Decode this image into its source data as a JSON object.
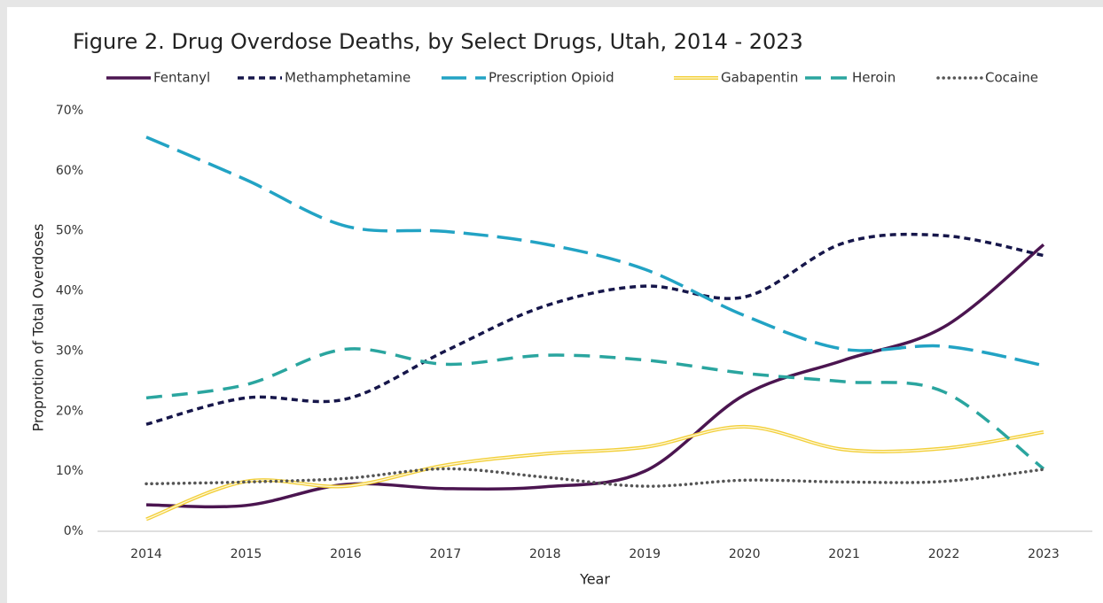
{
  "chart_data": {
    "type": "line",
    "title": "Figure 2. Drug Overdose Deaths, by Select Drugs, Utah, 2014 - 2023",
    "x_label": "Year",
    "y_label": "Proprotion of Total Overdoses",
    "categories": [
      "2014",
      "2015",
      "2016",
      "2017",
      "2018",
      "2019",
      "2020",
      "2021",
      "2022",
      "2023"
    ],
    "ylim": [
      0,
      70
    ],
    "yticks": [
      {
        "value": 0,
        "label": "0%"
      },
      {
        "value": 10,
        "label": "10%"
      },
      {
        "value": 20,
        "label": "20%"
      },
      {
        "value": 30,
        "label": "30%"
      },
      {
        "value": 40,
        "label": "40%"
      },
      {
        "value": 50,
        "label": "50%"
      },
      {
        "value": 60,
        "label": "60%"
      },
      {
        "value": 70,
        "label": "70%"
      }
    ],
    "smooth": true,
    "series": [
      {
        "name": "Fentanyl",
        "color": "#4b1550",
        "style": "solid",
        "values": [
          4.4,
          4.3,
          7.8,
          7.1,
          7.4,
          10,
          22.7,
          28.5,
          34,
          47.7
        ]
      },
      {
        "name": "Methamphetamine",
        "color": "#16164a",
        "style": "dashed",
        "values": [
          17.8,
          22.2,
          22,
          30,
          37.5,
          40.8,
          39,
          48,
          49.2,
          45.9
        ]
      },
      {
        "name": "Prescription Opioid",
        "color": "#22a3c4",
        "style": "longdash",
        "values": [
          65.6,
          58.5,
          50.8,
          49.9,
          47.8,
          43.6,
          35.9,
          30.3,
          30.8,
          27.6
        ]
      },
      {
        "name": "Gabapentin",
        "color": "#f2cf3a",
        "style": "double",
        "values": [
          2.0,
          8.3,
          7.5,
          11,
          12.9,
          14,
          17.4,
          13.6,
          13.8,
          16.5
        ]
      },
      {
        "name": "Heroin",
        "color": "#2aa59f",
        "style": "mediumdash",
        "values": [
          22.2,
          24.4,
          30.3,
          27.8,
          29.3,
          28.5,
          26.3,
          24.9,
          23.2,
          10.4
        ]
      },
      {
        "name": "Cocaine",
        "color": "#555555",
        "style": "dotted",
        "values": [
          7.9,
          8.2,
          8.8,
          10.4,
          9,
          7.5,
          8.5,
          8.2,
          8.3,
          10.3
        ]
      }
    ]
  }
}
